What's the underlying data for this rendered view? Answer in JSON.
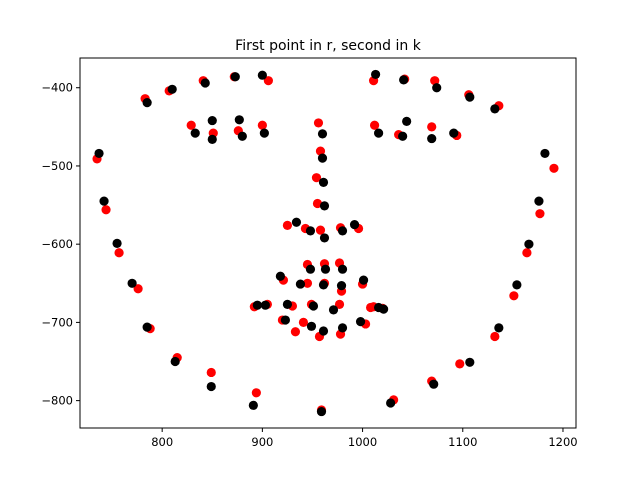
{
  "chart_data": {
    "type": "scatter",
    "title": "First point in r, second in k",
    "xlabel": "",
    "ylabel": "",
    "xlim": [
      718,
      1213
    ],
    "ylim": [
      -835,
      -362
    ],
    "xticks": [
      800,
      900,
      1000,
      1100,
      1200
    ],
    "yticks": [
      -400,
      -500,
      -600,
      -700,
      -800
    ],
    "xtick_labels": [
      "800",
      "900",
      "1000",
      "1100",
      "1200"
    ],
    "ytick_labels": [
      "−400",
      "−500",
      "−600",
      "−700",
      "−800"
    ],
    "grid": false,
    "series": [
      {
        "color": "#ff0000",
        "points": [
          [
            735,
            -491
          ],
          [
            744,
            -556
          ],
          [
            757,
            -611
          ],
          [
            776,
            -657
          ],
          [
            788,
            -708
          ],
          [
            815,
            -745
          ],
          [
            849,
            -764
          ],
          [
            894,
            -790
          ],
          [
            959,
            -812
          ],
          [
            1031,
            -799
          ],
          [
            1069,
            -775
          ],
          [
            1097,
            -753
          ],
          [
            1132,
            -718
          ],
          [
            1151,
            -666
          ],
          [
            1164,
            -611
          ],
          [
            1177,
            -561
          ],
          [
            1191,
            -503
          ],
          [
            783,
            -414
          ],
          [
            807,
            -404
          ],
          [
            841,
            -391
          ],
          [
            872,
            -386
          ],
          [
            906,
            -391
          ],
          [
            1011,
            -391
          ],
          [
            1042,
            -389
          ],
          [
            1072,
            -391
          ],
          [
            1106,
            -409
          ],
          [
            1136,
            -423
          ],
          [
            829,
            -448
          ],
          [
            851,
            -458
          ],
          [
            876,
            -455
          ],
          [
            900,
            -448
          ],
          [
            1012,
            -448
          ],
          [
            1036,
            -460
          ],
          [
            1069,
            -450
          ],
          [
            1094,
            -461
          ],
          [
            956,
            -445
          ],
          [
            958,
            -481
          ],
          [
            954,
            -515
          ],
          [
            955,
            -548
          ],
          [
            925,
            -576
          ],
          [
            943,
            -580
          ],
          [
            958,
            -582
          ],
          [
            978,
            -579
          ],
          [
            996,
            -580
          ],
          [
            921,
            -646
          ],
          [
            945,
            -626
          ],
          [
            962,
            -625
          ],
          [
            977,
            -624
          ],
          [
            1000,
            -651
          ],
          [
            920,
            -697
          ],
          [
            933,
            -712
          ],
          [
            941,
            -700
          ],
          [
            957,
            -718
          ],
          [
            978,
            -715
          ],
          [
            1003,
            -702
          ],
          [
            1020,
            -682
          ],
          [
            892,
            -680
          ],
          [
            905,
            -677
          ],
          [
            930,
            -679
          ],
          [
            949,
            -677
          ],
          [
            977,
            -677
          ],
          [
            1008,
            -681
          ],
          [
            945,
            -650
          ],
          [
            962,
            -650
          ],
          [
            979,
            -660
          ],
          [
            1011,
            -680
          ]
        ]
      },
      {
        "color": "#000000",
        "points": [
          [
            737,
            -484
          ],
          [
            742,
            -545
          ],
          [
            755,
            -599
          ],
          [
            770,
            -650
          ],
          [
            785,
            -706
          ],
          [
            813,
            -750
          ],
          [
            849,
            -782
          ],
          [
            891,
            -806
          ],
          [
            959,
            -814
          ],
          [
            1028,
            -803
          ],
          [
            1071,
            -779
          ],
          [
            1107,
            -751
          ],
          [
            1136,
            -707
          ],
          [
            1154,
            -652
          ],
          [
            1166,
            -600
          ],
          [
            1176,
            -545
          ],
          [
            1182,
            -484
          ],
          [
            785,
            -419
          ],
          [
            810,
            -402
          ],
          [
            843,
            -394
          ],
          [
            873,
            -386
          ],
          [
            900,
            -384
          ],
          [
            1013,
            -383
          ],
          [
            1041,
            -390
          ],
          [
            1074,
            -400
          ],
          [
            1107,
            -412
          ],
          [
            1132,
            -427
          ],
          [
            833,
            -458
          ],
          [
            850,
            -466
          ],
          [
            880,
            -462
          ],
          [
            902,
            -458
          ],
          [
            1016,
            -458
          ],
          [
            1040,
            -462
          ],
          [
            1069,
            -465
          ],
          [
            1091,
            -458
          ],
          [
            850,
            -442
          ],
          [
            877,
            -441
          ],
          [
            1044,
            -443
          ],
          [
            960,
            -459
          ],
          [
            960,
            -490
          ],
          [
            961,
            -521
          ],
          [
            962,
            -551
          ],
          [
            934,
            -572
          ],
          [
            948,
            -583
          ],
          [
            962,
            -592
          ],
          [
            980,
            -583
          ],
          [
            992,
            -575
          ],
          [
            918,
            -641
          ],
          [
            948,
            -632
          ],
          [
            963,
            -632
          ],
          [
            980,
            -632
          ],
          [
            1001,
            -646
          ],
          [
            923,
            -697
          ],
          [
            949,
            -705
          ],
          [
            961,
            -711
          ],
          [
            980,
            -707
          ],
          [
            998,
            -699
          ],
          [
            895,
            -678
          ],
          [
            903,
            -678
          ],
          [
            925,
            -677
          ],
          [
            951,
            -679
          ],
          [
            971,
            -684
          ],
          [
            1016,
            -681
          ],
          [
            938,
            -651
          ],
          [
            961,
            -652
          ],
          [
            979,
            -653
          ],
          [
            1021,
            -683
          ]
        ]
      }
    ]
  }
}
